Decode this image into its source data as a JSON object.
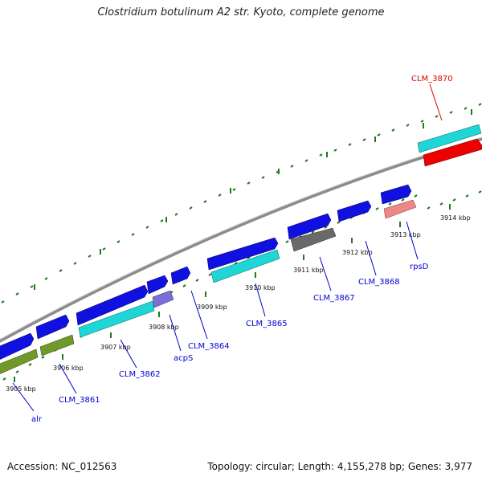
{
  "title": "Clostridium botulinum A2 str. Kyoto, complete genome",
  "footer": {
    "accession": "Accession: NC_012563",
    "summary": "Topology: circular; Length: 4,155,278 bp; Genes: 3,977"
  },
  "ticks": [
    {
      "label": "3905 kbp"
    },
    {
      "label": "3906 kbp"
    },
    {
      "label": "3907 kbp"
    },
    {
      "label": "3908 kbp"
    },
    {
      "label": "3909 kbp"
    },
    {
      "label": "3910 kbp"
    },
    {
      "label": "3911 kbp"
    },
    {
      "label": "3912 kbp"
    },
    {
      "label": "3913 kbp"
    },
    {
      "label": "3914 kbp"
    }
  ],
  "genes": [
    {
      "name": "alr"
    },
    {
      "name": "CLM_3861"
    },
    {
      "name": "CLM_3862"
    },
    {
      "name": "acpS"
    },
    {
      "name": "CLM_3864"
    },
    {
      "name": "CLM_3865"
    },
    {
      "name": "CLM_3867"
    },
    {
      "name": "CLM_3868"
    },
    {
      "name": "rpsD"
    },
    {
      "name": "CLM_3870"
    }
  ],
  "colors": {
    "backbone": "#8c8c8c",
    "tick": "#1f7a1f",
    "gene_arrow": "#1010e0",
    "cds_cyan": "#1fd6d6",
    "cds_olive": "#6f9a2a",
    "cds_gray": "#6a6a6a",
    "cds_violet": "#7b6fd6",
    "cds_pink": "#ee8888",
    "cds_red": "#ee0000",
    "label_blue": "#0000cc",
    "label_red": "#dd0000"
  }
}
